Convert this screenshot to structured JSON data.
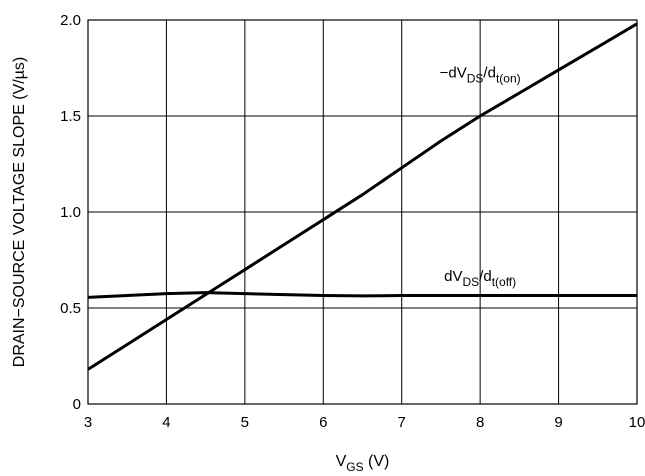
{
  "chart_data": {
    "type": "line",
    "title": "",
    "xlabel": {
      "main": "V",
      "sub": "GS",
      "unit": " (V)"
    },
    "ylabel": "DRAIN−SOURCE VOLTAGE SLOPE (V/µs)",
    "xlim": [
      3,
      10
    ],
    "ylim": [
      0,
      2.0
    ],
    "x_ticks": [
      3,
      4,
      5,
      6,
      7,
      8,
      9,
      10
    ],
    "y_ticks": [
      0,
      0.5,
      1.0,
      1.5,
      2.0
    ],
    "y_tick_labels": [
      "0",
      "0.5",
      "1.0",
      "1.5",
      "2.0"
    ],
    "grid": true,
    "series": [
      {
        "label_parts": [
          {
            "t": "−dV"
          },
          {
            "t": "DS",
            "sub": true
          },
          {
            "t": "/d"
          },
          {
            "t": "t(on)",
            "sub": true
          }
        ],
        "x": [
          3.0,
          3.5,
          4.0,
          4.5,
          5.0,
          5.5,
          6.0,
          6.5,
          7.0,
          7.5,
          8.0,
          8.5,
          9.0,
          9.5,
          10.0
        ],
        "y": [
          0.18,
          0.31,
          0.44,
          0.57,
          0.7,
          0.83,
          0.96,
          1.09,
          1.23,
          1.37,
          1.5,
          1.62,
          1.74,
          1.86,
          1.98
        ]
      },
      {
        "label_parts": [
          {
            "t": "dV"
          },
          {
            "t": "DS",
            "sub": true
          },
          {
            "t": "/d"
          },
          {
            "t": "t(off)",
            "sub": true
          }
        ],
        "x": [
          3.0,
          3.5,
          4.0,
          4.5,
          5.0,
          5.5,
          6.0,
          6.5,
          7.0,
          8.0,
          9.0,
          10.0
        ],
        "y": [
          0.555,
          0.565,
          0.575,
          0.58,
          0.575,
          0.57,
          0.565,
          0.563,
          0.565,
          0.565,
          0.565,
          0.565
        ]
      }
    ]
  }
}
